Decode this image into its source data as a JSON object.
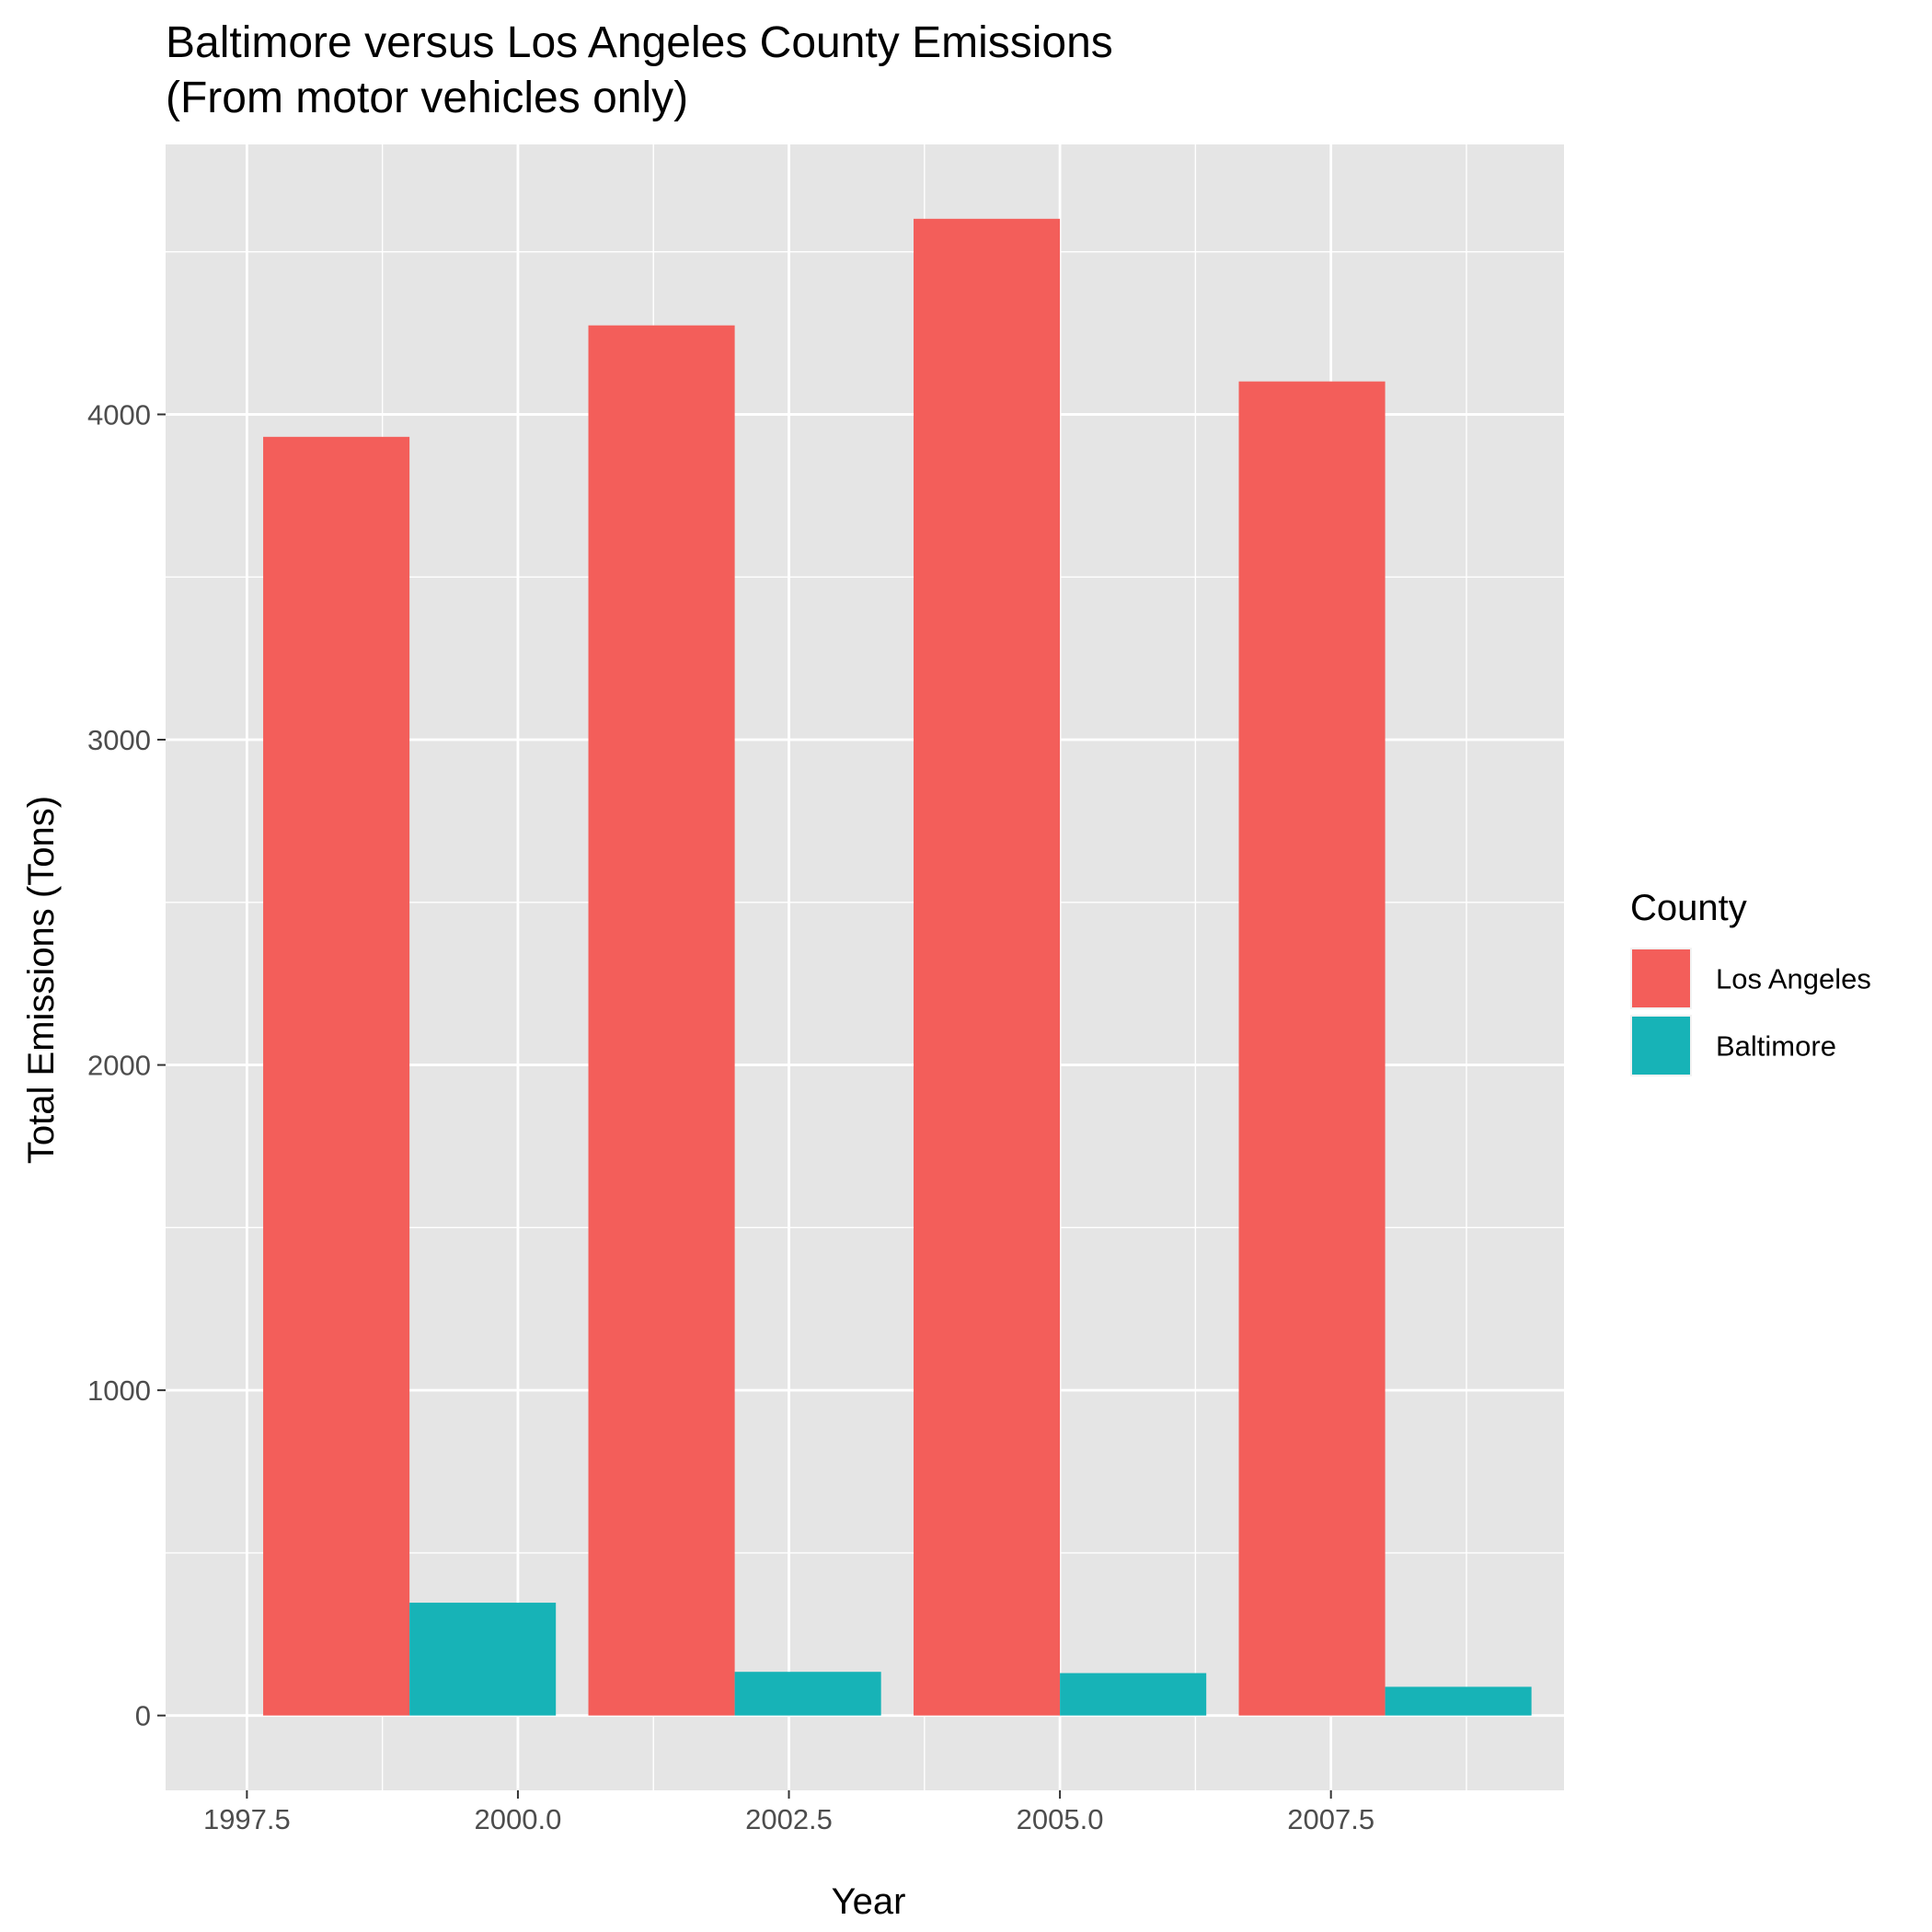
{
  "chart_data": {
    "type": "bar",
    "title": "Baltimore versus Los Angeles County Emissions",
    "subtitle": "(From motor vehicles only)",
    "xlabel": "Year",
    "ylabel": "Total Emissions (Tons)",
    "x": [
      1999,
      2002,
      2005,
      2008
    ],
    "series": [
      {
        "name": "Los Angeles",
        "color": "#F35E5A",
        "values": [
          3931.1,
          4273.7,
          4601.4,
          4101.3
        ]
      },
      {
        "name": "Baltimore",
        "color": "#17B3B7",
        "values": [
          346.8,
          134.3,
          130.4,
          88.3
        ]
      }
    ],
    "xlim": [
      1996.75,
      2009.65
    ],
    "ylim": [
      -230,
      4830
    ],
    "x_ticks": [
      1997.5,
      2000.0,
      2002.5,
      2005.0,
      2007.5
    ],
    "x_tick_labels": [
      "1997.5",
      "2000.0",
      "2002.5",
      "2005.0",
      "2007.5"
    ],
    "y_ticks": [
      0,
      1000,
      2000,
      3000,
      4000
    ],
    "y_tick_labels": [
      "0",
      "1000",
      "2000",
      "3000",
      "4000"
    ],
    "bar_width_years": 2.7,
    "legend": {
      "title": "County",
      "position": "right"
    },
    "grid": true,
    "panel_background": "#E5E5E5",
    "grid_color": "#FFFFFF"
  }
}
